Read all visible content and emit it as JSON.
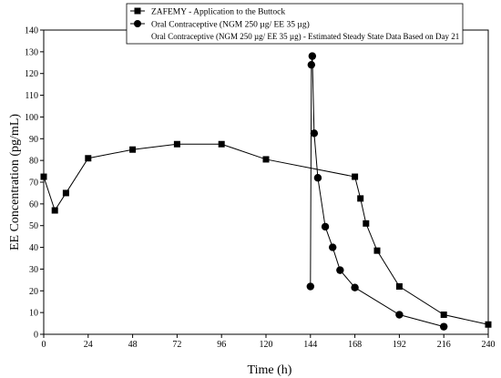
{
  "chart_data": {
    "type": "line",
    "xlabel": "Time (h)",
    "ylabel": "EE Concentration (pg/mL)",
    "xlim": [
      0,
      240
    ],
    "ylim": [
      0,
      140
    ],
    "x_ticks": [
      0,
      24,
      48,
      72,
      96,
      120,
      144,
      168,
      192,
      216,
      240
    ],
    "y_ticks": [
      0,
      10,
      20,
      30,
      40,
      50,
      60,
      70,
      80,
      90,
      100,
      110,
      120,
      130,
      140
    ],
    "grid": false,
    "legend": {
      "placement": "top-center",
      "entries": [
        "ZAFEMY - Application to the Buttock",
        "Oral Contraceptive (NGM 250 µg/ EE 35 µg)",
        "Oral Contraceptive (NGM 250 µg/ EE 35 µg) - Estimated Steady State Data Based on Day 21"
      ]
    },
    "series": [
      {
        "name": "ZAFEMY - Application to the Buttock",
        "marker": "square",
        "x": [
          0,
          6,
          12,
          24,
          48,
          72,
          96,
          120,
          168,
          171,
          174,
          180,
          192,
          216,
          240
        ],
        "y": [
          72.5,
          57,
          65,
          81,
          85,
          87.5,
          87.5,
          80.5,
          72.5,
          62.5,
          51,
          38.5,
          22,
          9,
          4.5
        ]
      },
      {
        "name": "Oral Contraceptive (NGM 250 µg/ EE 35 µg)",
        "marker": "circle",
        "x": [
          144,
          144.5,
          145,
          146,
          148,
          152,
          156,
          160,
          168,
          192,
          216
        ],
        "y": [
          22,
          124,
          128,
          92.5,
          72,
          49.5,
          40,
          29.5,
          21.5,
          9,
          3.5
        ]
      }
    ]
  }
}
